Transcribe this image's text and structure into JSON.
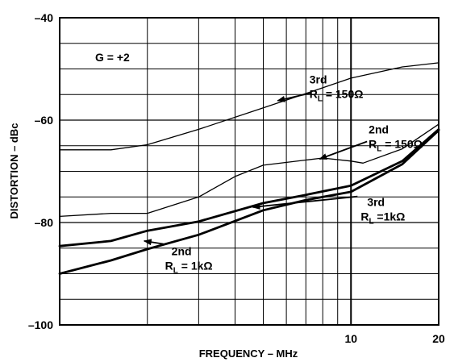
{
  "chart_data": {
    "type": "line",
    "title": "",
    "xlabel": "FREQUENCY – MHz",
    "ylabel": "DISTORTION – dBc",
    "x_scale": "log",
    "xlim": [
      1,
      20
    ],
    "ylim": [
      -100,
      -40
    ],
    "x_ticks": [
      {
        "value": 10,
        "label": "10"
      },
      {
        "value": 20,
        "label": "20"
      }
    ],
    "y_ticks": [
      {
        "value": -40,
        "label": "–40"
      },
      {
        "value": -60,
        "label": "–60"
      },
      {
        "value": -80,
        "label": "–80"
      },
      {
        "value": -100,
        "label": "–100"
      }
    ],
    "x_gridlines": [
      2,
      3,
      4,
      5,
      6,
      7,
      8,
      9,
      10
    ],
    "y_gridlines": [
      -45,
      -50,
      -55,
      -60,
      -65,
      -70,
      -75,
      -80,
      -85,
      -90,
      -95
    ],
    "grid": true,
    "gain_label": "G = +2",
    "series": [
      {
        "id": "third_150",
        "stroke": "thin",
        "points": [
          [
            1,
            -65.8
          ],
          [
            1.5,
            -65.8
          ],
          [
            2,
            -64.8
          ],
          [
            3,
            -61.8
          ],
          [
            5,
            -57.6
          ],
          [
            7,
            -54.8
          ],
          [
            10,
            -51.8
          ],
          [
            15,
            -49.6
          ],
          [
            20,
            -48.8
          ]
        ]
      },
      {
        "id": "second_150",
        "stroke": "thin",
        "points": [
          [
            1,
            -78.8
          ],
          [
            1.5,
            -78.2
          ],
          [
            2,
            -78.2
          ],
          [
            3,
            -75
          ],
          [
            4,
            -71
          ],
          [
            5,
            -68.8
          ],
          [
            7,
            -67.8
          ],
          [
            8,
            -67.4
          ],
          [
            10,
            -68
          ],
          [
            11,
            -68.4
          ],
          [
            15,
            -65.6
          ],
          [
            20,
            -60.8
          ]
        ]
      },
      {
        "id": "third_1k",
        "stroke": "thick",
        "points": [
          [
            1,
            -84.6
          ],
          [
            1.5,
            -83.6
          ],
          [
            2,
            -81.6
          ],
          [
            3,
            -79.8
          ],
          [
            5,
            -76.2
          ],
          [
            7,
            -74.6
          ],
          [
            10,
            -72.8
          ],
          [
            15,
            -68
          ],
          [
            20,
            -61.8
          ]
        ]
      },
      {
        "id": "second_1k",
        "stroke": "thick",
        "points": [
          [
            1,
            -90
          ],
          [
            1.5,
            -87.4
          ],
          [
            2,
            -85.2
          ],
          [
            3,
            -82.4
          ],
          [
            5,
            -77.6
          ],
          [
            7,
            -75.6
          ],
          [
            10,
            -74
          ],
          [
            15,
            -68.6
          ],
          [
            20,
            -62
          ]
        ]
      }
    ],
    "annotations": [
      {
        "id": "third_150",
        "order": "3rd",
        "r_text": "R",
        "r_sub": "L",
        "r_value": " = 150Ω",
        "at": [
          7.2,
          -52.8
        ],
        "arrow_to": [
          5.6,
          -56.2
        ]
      },
      {
        "id": "second_150",
        "order": "2nd",
        "r_text": "R",
        "r_sub": "L",
        "r_value": " = 150Ω",
        "at": [
          11.5,
          -62.6
        ],
        "arrow_to": [
          7.8,
          -67.6
        ]
      },
      {
        "id": "third_1k",
        "order": "3rd",
        "r_text": "R",
        "r_sub": "L",
        "r_value": " =1kΩ",
        "at": [
          10.8,
          -76.8
        ],
        "arrow_to": [
          4.6,
          -77.0
        ]
      },
      {
        "id": "second_1k",
        "order": "2nd",
        "r_text": "R",
        "r_sub": "L",
        "r_value": " = 1kΩ",
        "at": [
          2.3,
          -86.4
        ],
        "arrow_to": [
          1.95,
          -83.6
        ]
      }
    ]
  }
}
